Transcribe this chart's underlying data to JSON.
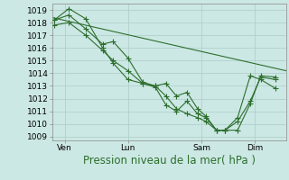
{
  "background_color": "#cce8e4",
  "grid_color": "#aaccc8",
  "line_color": "#2d6e2d",
  "marker_color": "#2d6e2d",
  "ylabel_ticks": [
    1009,
    1010,
    1011,
    1012,
    1013,
    1014,
    1015,
    1016,
    1017,
    1018,
    1019
  ],
  "ylim": [
    1008.7,
    1019.5
  ],
  "xlabel": "Pression niveau de la mer( hPa )",
  "xlabel_fontsize": 8.5,
  "tick_fontsize": 6.5,
  "day_labels": [
    "Ven",
    "Lun",
    "Sam",
    "Dim"
  ],
  "day_positions": [
    0.5,
    3.5,
    7.0,
    9.5
  ],
  "xlim": [
    -0.1,
    11.0
  ],
  "trend_x": [
    -0.1,
    11.0
  ],
  "trend_y": [
    1018.4,
    1014.2
  ],
  "series1_x": [
    0.0,
    0.7,
    1.5,
    2.3,
    2.8,
    3.5,
    4.2,
    4.8,
    5.3,
    5.8,
    6.3,
    6.8,
    7.2,
    7.7,
    8.1,
    8.7,
    9.3,
    9.8,
    10.5
  ],
  "series1_y": [
    1018.2,
    1018.6,
    1017.5,
    1016.3,
    1016.5,
    1015.2,
    1013.3,
    1013.0,
    1013.2,
    1012.2,
    1012.5,
    1011.2,
    1010.6,
    1009.5,
    1009.5,
    1009.5,
    1011.6,
    1013.8,
    1013.7
  ],
  "series2_x": [
    0.0,
    0.7,
    1.5,
    2.3,
    2.8,
    3.5,
    4.2,
    4.8,
    5.3,
    5.8,
    6.3,
    6.8,
    7.2,
    7.7,
    8.1,
    8.7,
    9.3,
    9.8,
    10.5
  ],
  "series2_y": [
    1018.2,
    1019.1,
    1018.3,
    1016.0,
    1014.8,
    1013.5,
    1013.2,
    1012.9,
    1011.5,
    1011.0,
    1011.8,
    1010.8,
    1010.5,
    1009.5,
    1009.5,
    1010.5,
    1013.8,
    1013.5,
    1012.8
  ],
  "series3_x": [
    0.0,
    0.7,
    1.5,
    2.3,
    2.8,
    3.5,
    4.2,
    4.8,
    5.3,
    5.8,
    6.3,
    6.8,
    7.2,
    7.7,
    8.1,
    8.7,
    9.3,
    9.8,
    10.5
  ],
  "series3_y": [
    1017.8,
    1018.0,
    1017.0,
    1015.8,
    1015.0,
    1014.2,
    1013.2,
    1013.0,
    1012.2,
    1011.2,
    1010.8,
    1010.5,
    1010.2,
    1009.5,
    1009.5,
    1010.2,
    1011.8,
    1013.7,
    1013.5
  ]
}
